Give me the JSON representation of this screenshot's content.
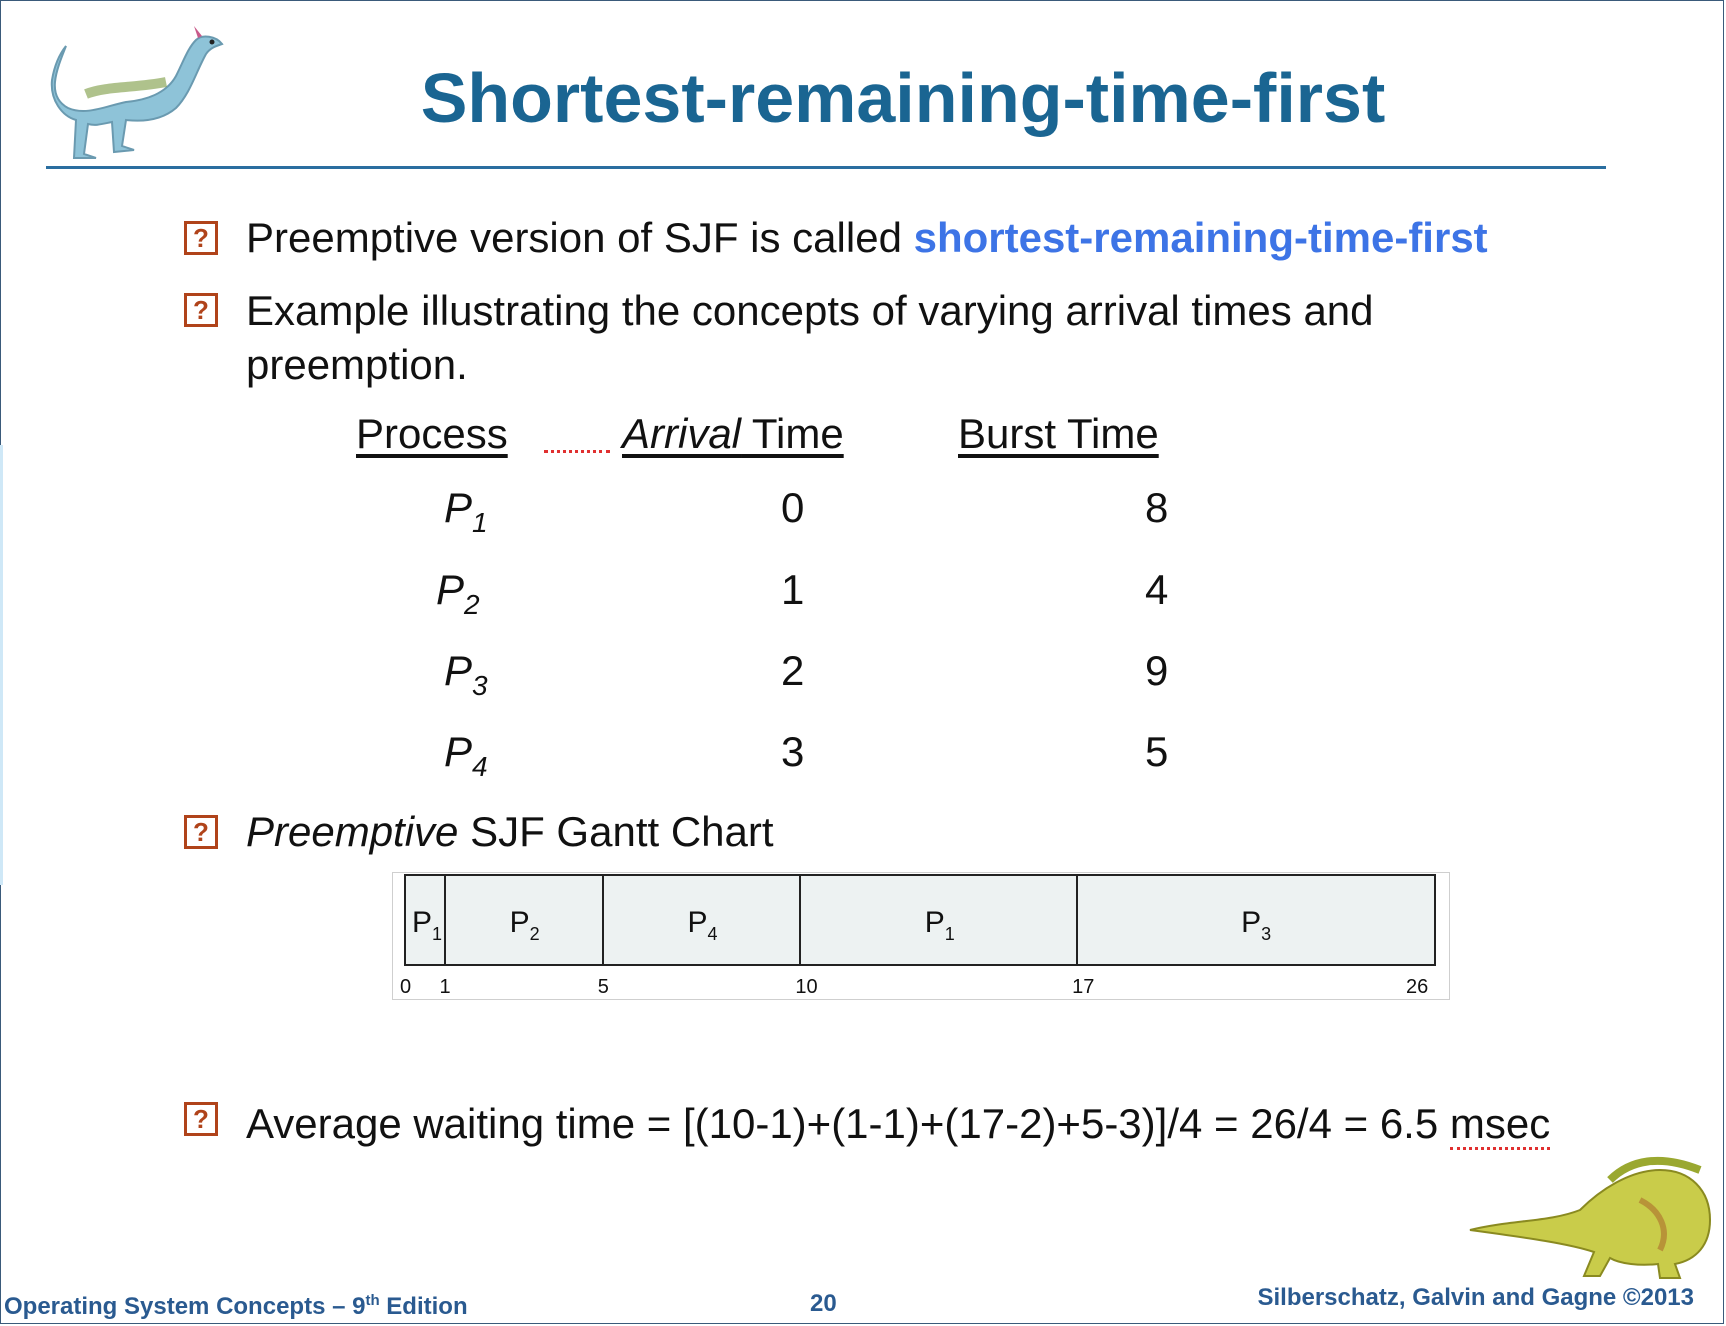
{
  "title": "Shortest-remaining-time-first",
  "bullets": {
    "b1_text": "Preemptive version of SJF is called ",
    "b1_highlight": "shortest-remaining-time-first",
    "b2_line1": "Example  illustrating the concepts of varying arrival times and",
    "b2_line2": "preemption.",
    "b3_italic": "Preemptive",
    "b3_text": " SJF Gantt Chart",
    "b4_text_a": "Average waiting time = [(10-1)+(1-1)+(17-2)+5-3)]/4 = 26/4 = 6.5 ",
    "b4_text_b": "msec",
    "icon": "?"
  },
  "table": {
    "headers": {
      "process": "Process",
      "arrival_italic": "Arrival",
      "arrival_rest": " Time",
      "burst": "Burst Time"
    },
    "rows": [
      {
        "p": "P",
        "sub": "1",
        "arrival": "0",
        "burst": "8"
      },
      {
        "p": "P",
        "sub": "2",
        "arrival": "1",
        "burst": "4"
      },
      {
        "p": "P",
        "sub": "3",
        "arrival": "2",
        "burst": "9"
      },
      {
        "p": "P",
        "sub": "4",
        "arrival": "3",
        "burst": "5"
      }
    ]
  },
  "gantt": {
    "segments": [
      {
        "p": "P",
        "sub": "1",
        "start": 0,
        "end": 1
      },
      {
        "p": "P",
        "sub": "2",
        "start": 1,
        "end": 5
      },
      {
        "p": "P",
        "sub": "4",
        "start": 5,
        "end": 10
      },
      {
        "p": "P",
        "sub": "1",
        "start": 10,
        "end": 17
      },
      {
        "p": "P",
        "sub": "3",
        "start": 17,
        "end": 26
      }
    ],
    "ticks": [
      "0",
      "1",
      "5",
      "10",
      "17",
      "26"
    ]
  },
  "footer": {
    "left_a": "Operating System Concepts – 9",
    "left_sup": "th",
    "left_b": " Edition",
    "page": "20",
    "right": "Silberschatz, Galvin and Gagne ©2013"
  }
}
